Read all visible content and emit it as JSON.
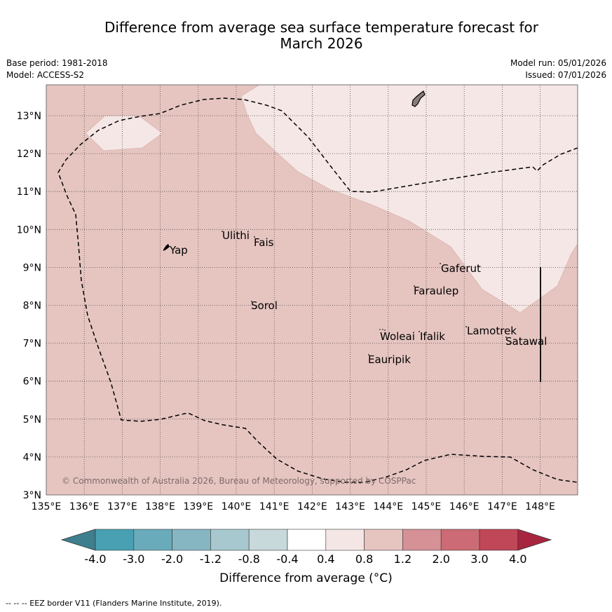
{
  "title_line1": "Difference from average sea surface temperature forecast for",
  "title_line2": "March 2026",
  "base_period": "Base period: 1981-2018",
  "model": "Model: ACCESS-S2",
  "model_run": "Model run: 05/01/2026",
  "issued": "Issued: 07/01/2026",
  "lon_labels": [
    "135°E",
    "136°E",
    "137°E",
    "138°E",
    "139°E",
    "140°E",
    "141°E",
    "142°E",
    "143°E",
    "144°E",
    "145°E",
    "146°E",
    "147°E",
    "148°E"
  ],
  "lat_labels": [
    "3°N",
    "4°N",
    "5°N",
    "6°N",
    "7°N",
    "8°N",
    "9°N",
    "10°N",
    "11°N",
    "12°N",
    "13°N"
  ],
  "places": [
    "Yap",
    "Ulithi",
    "Fais",
    "Sorol",
    "Gaferut",
    "Faraulep",
    "Woleai",
    "Ifalik",
    "Eauripik",
    "Lamotrek",
    "Satawal"
  ],
  "copyright": "© Commonwealth of Australia 2026, Bureau of Meteorology, supported by COSPPac",
  "colorbar": {
    "ticks": [
      "-4.0",
      "-3.0",
      "-2.0",
      "-1.2",
      "-0.8",
      "-0.4",
      "0.4",
      "0.8",
      "1.2",
      "2.0",
      "3.0",
      "4.0"
    ],
    "colors": [
      "#3d7f8c",
      "#48a0b2",
      "#6aabbb",
      "#87b6c3",
      "#a8c8cf",
      "#c8d9dc",
      "#ffffff",
      "#f4e6e4",
      "#e6c4c0",
      "#d59196",
      "#cc6b75",
      "#c04757",
      "#a82540"
    ],
    "label": "Difference from average (°C)"
  },
  "footnote": "-- -- -- EEZ border V11 (Flanders Marine Institute, 2019)."
}
